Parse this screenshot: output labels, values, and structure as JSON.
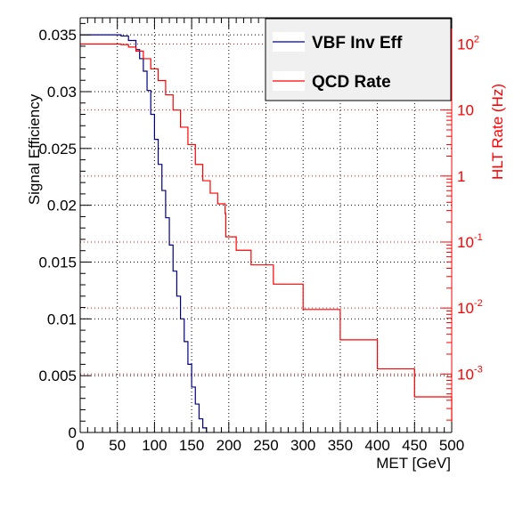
{
  "chart_data": {
    "type": "line",
    "xlabel": "MET [GeV]",
    "ylabel_left": "Signal Efficiency",
    "ylabel_right": "HLT Rate (Hz)",
    "xlim": [
      0,
      500
    ],
    "ylim_left": [
      0,
      0.0365
    ],
    "ylim_right_log": [
      0.00013,
      250
    ],
    "x_ticks": [
      0,
      50,
      100,
      150,
      200,
      250,
      300,
      350,
      400,
      450,
      500
    ],
    "x_tick_labels": [
      "0",
      "50",
      "100",
      "150",
      "200",
      "250",
      "300",
      "350",
      "400",
      "450",
      "500"
    ],
    "y_left_ticks": [
      0,
      0.005,
      0.01,
      0.015,
      0.02,
      0.025,
      0.03,
      0.035
    ],
    "y_left_tick_labels": [
      "0",
      "0.005",
      "0.01",
      "0.015",
      "0.02",
      "0.025",
      "0.03",
      "0.035"
    ],
    "y_right_ticks": [
      0.001,
      0.01,
      0.1,
      1,
      10,
      100
    ],
    "y_right_tick_labels": [
      {
        "base": "10",
        "exp": "-3"
      },
      {
        "base": "10",
        "exp": "-2"
      },
      {
        "base": "10",
        "exp": "-1"
      },
      {
        "base": "1",
        "exp": ""
      },
      {
        "base": "10",
        "exp": ""
      },
      {
        "base": "10",
        "exp": "2"
      }
    ],
    "grid": true,
    "legend_position": "top-right",
    "series": [
      {
        "name": "VBF Inv Eff",
        "axis": "left",
        "color": "#000080",
        "x": [
          0,
          40,
          55,
          65,
          75,
          80,
          85,
          90,
          95,
          100,
          105,
          110,
          115,
          120,
          125,
          130,
          135,
          140,
          145,
          150,
          155,
          160,
          165,
          170
        ],
        "y": [
          0.035,
          0.035,
          0.0349,
          0.0345,
          0.0337,
          0.0329,
          0.0318,
          0.0301,
          0.028,
          0.0258,
          0.0236,
          0.0213,
          0.0189,
          0.0165,
          0.0142,
          0.012,
          0.01,
          0.008,
          0.006,
          0.004,
          0.0025,
          0.0012,
          0.0004,
          0.0
        ]
      },
      {
        "name": "QCD Rate",
        "axis": "right",
        "color": "#ff0000",
        "x": [
          0,
          40,
          55,
          65,
          75,
          85,
          95,
          105,
          115,
          125,
          135,
          145,
          155,
          165,
          175,
          185,
          195,
          196,
          210,
          230,
          260,
          300,
          350,
          400,
          450,
          500
        ],
        "y": [
          100,
          100,
          98,
          90,
          78,
          60,
          42,
          28,
          17,
          10,
          5.5,
          3.0,
          1.5,
          0.85,
          0.55,
          0.38,
          0.27,
          0.12,
          0.075,
          0.045,
          0.023,
          0.0095,
          0.0033,
          0.0012,
          0.00045,
          0.00019
        ]
      }
    ]
  }
}
